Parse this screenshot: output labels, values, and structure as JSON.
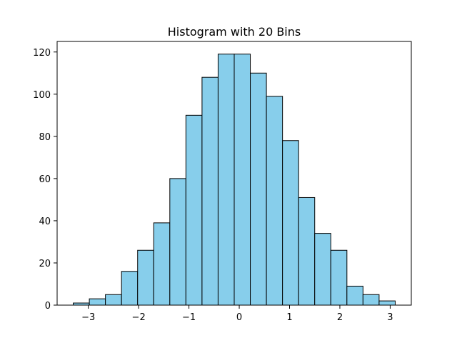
{
  "chart_data": {
    "type": "bar",
    "title": "Histogram with 20 Bins",
    "xlabel": "",
    "ylabel": "",
    "bin_edges": [
      -3.3,
      -2.98,
      -2.66,
      -2.34,
      -2.02,
      -1.7,
      -1.38,
      -1.06,
      -0.74,
      -0.42,
      -0.1,
      0.22,
      0.54,
      0.86,
      1.18,
      1.5,
      1.82,
      2.14,
      2.46,
      2.78,
      3.1
    ],
    "values": [
      1,
      3,
      5,
      16,
      26,
      39,
      60,
      90,
      108,
      119,
      119,
      110,
      99,
      78,
      51,
      34,
      26,
      9,
      5,
      2
    ],
    "xlim": [
      -3.62,
      3.42
    ],
    "ylim": [
      0,
      125
    ],
    "x_ticks": [
      -3,
      -2,
      -1,
      0,
      1,
      2,
      3
    ],
    "x_tick_labels": [
      "−3",
      "−2",
      "−1",
      "0",
      "1",
      "2",
      "3"
    ],
    "y_ticks": [
      0,
      20,
      40,
      60,
      80,
      100,
      120
    ],
    "y_tick_labels": [
      "0",
      "20",
      "40",
      "60",
      "80",
      "100",
      "120"
    ],
    "bar_color": "#87ceeb",
    "edge_color": "#000000",
    "grid": false,
    "legend": "none"
  }
}
